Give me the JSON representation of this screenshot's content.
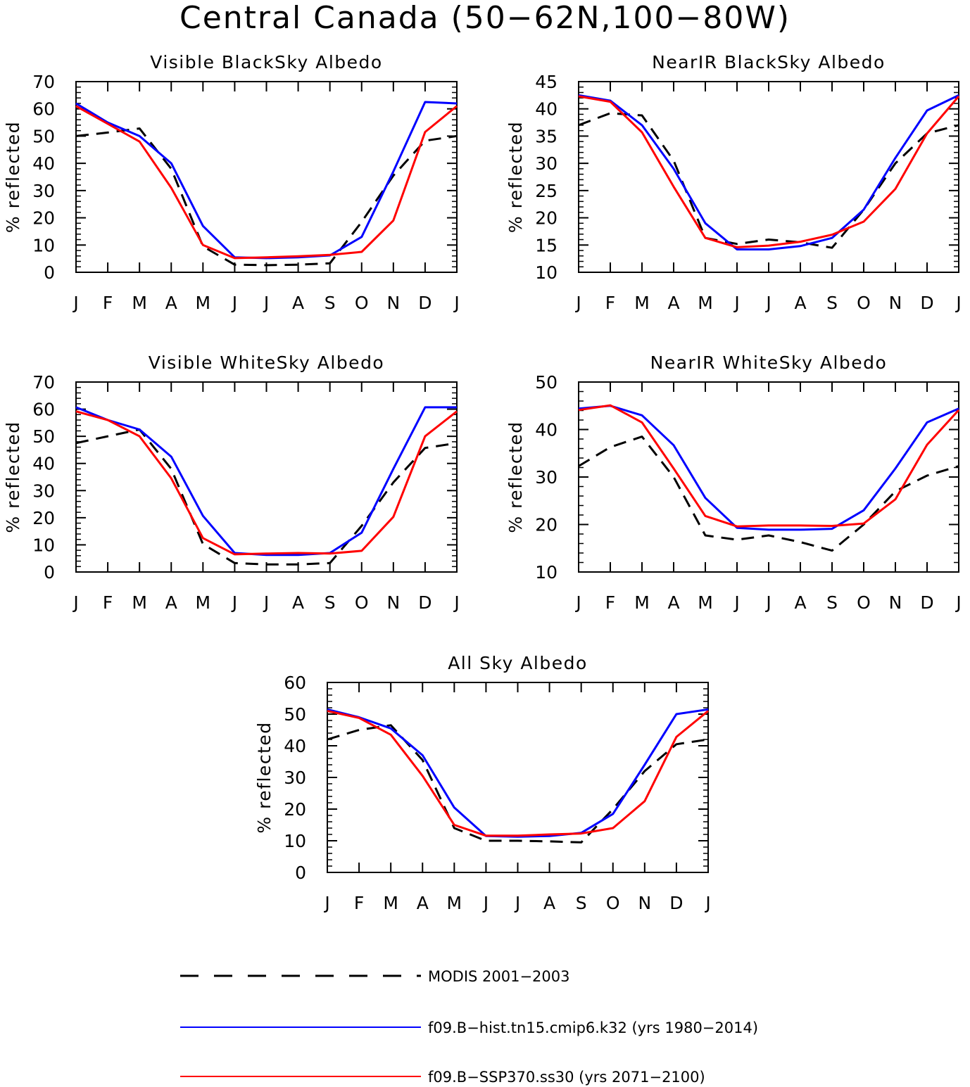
{
  "page_title": "Central Canada (50−62N,100−80W)",
  "series_styles": [
    {
      "name": "MODIS 2001−2003",
      "color": "#000000",
      "dash": true
    },
    {
      "name": "f09.B−hist.tn15.cmip6.k32 (yrs 1980−2014)",
      "color": "#0000ff",
      "dash": false
    },
    {
      "name": "f09.B−SSP370.ss30 (yrs 2071−2100)",
      "color": "#ff0000",
      "dash": false
    }
  ],
  "legend": [
    {
      "label": "MODIS 2001−2003"
    },
    {
      "label": "f09.B−hist.tn15.cmip6.k32 (yrs 1980−2014)"
    },
    {
      "label": "f09.B−SSP370.ss30 (yrs 2071−2100)"
    }
  ],
  "chart_data": [
    {
      "type": "line",
      "title": "Visible BlackSky Albedo",
      "ylabel": "% reflected",
      "xlabel": "",
      "categories": [
        "J",
        "F",
        "M",
        "A",
        "M",
        "J",
        "J",
        "A",
        "S",
        "O",
        "N",
        "D",
        "J"
      ],
      "ylim": [
        0,
        70
      ],
      "yticks": [
        0,
        10,
        20,
        30,
        40,
        50,
        60,
        70
      ],
      "series": [
        {
          "name": "MODIS 2001−2003",
          "values": [
            50,
            51.3,
            52.8,
            38,
            9.5,
            2.8,
            2.6,
            2.8,
            3.3,
            18.5,
            35.5,
            48.3,
            50
          ]
        },
        {
          "name": "f09.B−hist.tn15.cmip6.k32 (yrs 1980−2014)",
          "values": [
            62,
            55,
            50,
            40,
            17,
            5.5,
            5.2,
            5.5,
            6.2,
            13,
            37,
            62.5,
            62
          ]
        },
        {
          "name": "f09.B−SSP370.ss30 (yrs 2071−2100)",
          "values": [
            61,
            54.5,
            48,
            31,
            10,
            5.2,
            5.5,
            5.9,
            6.4,
            7.5,
            19,
            51.5,
            61
          ]
        }
      ]
    },
    {
      "type": "line",
      "title": "NearIR BlackSky Albedo",
      "ylabel": "% reflected",
      "xlabel": "",
      "categories": [
        "J",
        "F",
        "M",
        "A",
        "M",
        "J",
        "J",
        "A",
        "S",
        "O",
        "N",
        "D",
        "J"
      ],
      "ylim": [
        10,
        45
      ],
      "yticks": [
        10,
        15,
        20,
        25,
        30,
        35,
        40,
        45
      ],
      "series": [
        {
          "name": "MODIS 2001−2003",
          "values": [
            37,
            39.2,
            38.8,
            30.5,
            16.3,
            15.2,
            16,
            15.5,
            14.5,
            21.5,
            30,
            35.5,
            37
          ]
        },
        {
          "name": "f09.B−hist.tn15.cmip6.k32 (yrs 1980−2014)",
          "values": [
            42.5,
            41.5,
            37,
            29,
            19,
            14.2,
            14.2,
            14.8,
            16.3,
            21.5,
            31,
            39.7,
            42.5
          ]
        },
        {
          "name": "f09.B−SSP370.ss30 (yrs 2071−2100)",
          "values": [
            42.3,
            41.3,
            35.7,
            25.7,
            16.3,
            14.6,
            14.9,
            15.6,
            16.9,
            19.3,
            25.3,
            35.5,
            42.3
          ]
        }
      ]
    },
    {
      "type": "line",
      "title": "Visible WhiteSky Albedo",
      "ylabel": "% reflected",
      "xlabel": "",
      "categories": [
        "J",
        "F",
        "M",
        "A",
        "M",
        "J",
        "J",
        "A",
        "S",
        "O",
        "N",
        "D",
        "J"
      ],
      "ylim": [
        0,
        70
      ],
      "yticks": [
        0,
        10,
        20,
        30,
        40,
        50,
        60,
        70
      ],
      "series": [
        {
          "name": "MODIS 2001−2003",
          "values": [
            47.5,
            50,
            52.5,
            38,
            10.3,
            3.3,
            2.8,
            2.8,
            3.3,
            17,
            33,
            45.7,
            47.5
          ]
        },
        {
          "name": "f09.B−hist.tn15.cmip6.k32 (yrs 1980−2014)",
          "values": [
            60.7,
            56,
            52.5,
            42.5,
            20.7,
            7,
            6.3,
            6.3,
            7,
            14.5,
            38,
            60.7,
            60.7
          ]
        },
        {
          "name": "f09.B−SSP370.ss30 (yrs 2071−2100)",
          "values": [
            59.2,
            56,
            50,
            34.5,
            12.5,
            6.5,
            6.8,
            7,
            6.8,
            7.8,
            20.3,
            50,
            59.2
          ]
        }
      ]
    },
    {
      "type": "line",
      "title": "NearIR WhiteSky Albedo",
      "ylabel": "% reflected",
      "xlabel": "",
      "categories": [
        "J",
        "F",
        "M",
        "A",
        "M",
        "J",
        "J",
        "A",
        "S",
        "O",
        "N",
        "D",
        "J"
      ],
      "ylim": [
        10,
        50
      ],
      "yticks": [
        10,
        20,
        30,
        40,
        50
      ],
      "series": [
        {
          "name": "MODIS 2001−2003",
          "values": [
            32.3,
            36.3,
            38.5,
            30,
            17.7,
            16.8,
            17.7,
            16.3,
            14.5,
            20,
            27,
            30.3,
            32.3
          ]
        },
        {
          "name": "f09.B−hist.tn15.cmip6.k32 (yrs 1980−2014)",
          "values": [
            44.4,
            45,
            43,
            36.7,
            25.6,
            19.3,
            18.9,
            18.9,
            19.1,
            23,
            31.8,
            41.5,
            44.4
          ]
        },
        {
          "name": "f09.B−SSP370.ss30 (yrs 2071−2100)",
          "values": [
            44.1,
            45.1,
            41.5,
            31.8,
            21.8,
            19.6,
            19.8,
            19.8,
            19.7,
            20.2,
            25.3,
            36.8,
            44.1
          ]
        }
      ]
    },
    {
      "type": "line",
      "title": "All Sky Albedo",
      "ylabel": "% reflected",
      "xlabel": "",
      "categories": [
        "J",
        "F",
        "M",
        "A",
        "M",
        "J",
        "J",
        "A",
        "S",
        "O",
        "N",
        "D",
        "J"
      ],
      "ylim": [
        0,
        60
      ],
      "yticks": [
        0,
        10,
        20,
        30,
        40,
        50,
        60
      ],
      "series": [
        {
          "name": "MODIS 2001−2003",
          "values": [
            42,
            45,
            46.5,
            35.5,
            14,
            10,
            10,
            9.8,
            9.5,
            20,
            32,
            40.5,
            42
          ]
        },
        {
          "name": "f09.B−hist.tn15.cmip6.k32 (yrs 1980−2014)",
          "values": [
            51.5,
            49,
            45.5,
            37,
            20.5,
            11.5,
            11.3,
            11.5,
            12.5,
            18.5,
            34,
            50,
            51.5
          ]
        },
        {
          "name": "f09.B−SSP370.ss30 (yrs 2071−2100)",
          "values": [
            51,
            48.8,
            43.5,
            30.5,
            15,
            11.6,
            11.6,
            12,
            12.3,
            14,
            22.5,
            42.8,
            51
          ]
        }
      ]
    }
  ]
}
